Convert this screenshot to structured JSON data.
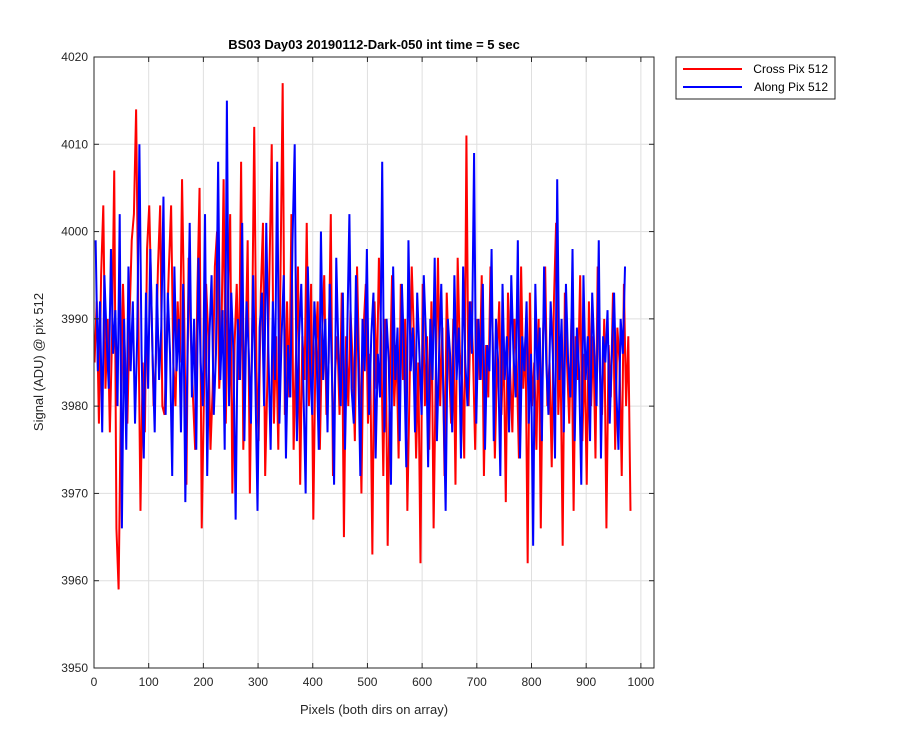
{
  "chart_data": {
    "type": "line",
    "title": "BS03 Day03 20190112-Dark-050 int time = 5 sec",
    "xlabel": "Pixels (both dirs on array)",
    "ylabel": "Signal (ADU) @ pix 512",
    "xlim": [
      0,
      1024
    ],
    "ylim": [
      3950,
      4020
    ],
    "xticks": [
      0,
      100,
      200,
      300,
      400,
      500,
      600,
      700,
      800,
      900,
      1000
    ],
    "yticks": [
      3950,
      3960,
      3970,
      3980,
      3990,
      4000,
      4010,
      4020
    ],
    "grid": true,
    "legend_position": "outside top-right",
    "series": [
      {
        "name": "Cross Pix 512",
        "color": "#ff0000",
        "x_start": 1,
        "x_step": 4,
        "values": [
          3985,
          3992,
          3978,
          3995,
          4003,
          3982,
          3990,
          3977,
          3988,
          4007,
          3966,
          3959,
          3980,
          3994,
          3985,
          3978,
          3990,
          3999,
          4002,
          4014,
          3991,
          3968,
          3985,
          3977,
          3998,
          4003,
          3992,
          3980,
          3985,
          3996,
          4003,
          3980,
          3979,
          3988,
          3996,
          4003,
          3985,
          3980,
          3992,
          3985,
          4006,
          3990,
          3971,
          3997,
          3988,
          3981,
          3975,
          3993,
          4005,
          3966,
          3981,
          3994,
          3988,
          3975,
          3982,
          3996,
          4000,
          3982,
          3988,
          4006,
          3978,
          3993,
          4002,
          3970,
          3987,
          3994,
          3983,
          4008,
          3975,
          3986,
          3999,
          3970,
          3988,
          4012,
          3984,
          3976,
          3993,
          4001,
          3972,
          3983,
          3996,
          4010,
          3978,
          3988,
          3975,
          3995,
          4017,
          3979,
          3992,
          3981,
          4002,
          3975,
          3985,
          3996,
          3971,
          3988,
          3983,
          4001,
          3980,
          3994,
          3967,
          3986,
          3992,
          3975,
          3988,
          3995,
          3979,
          3985,
          4002,
          3972,
          3984,
          3988,
          3979,
          3993,
          3965,
          3988,
          3980,
          3991,
          3985,
          3976,
          3996,
          3984,
          3970,
          3989,
          3994,
          3978,
          3986,
          3963,
          3992,
          3982,
          3997,
          3988,
          3972,
          3990,
          3964,
          3983,
          3995,
          3980,
          3987,
          3974,
          3994,
          3983,
          3990,
          3968,
          3982,
          3996,
          3988,
          3974,
          3985,
          3962,
          3994,
          3980,
          3988,
          3975,
          3992,
          3966,
          3984,
          3997,
          3980,
          3989,
          3972,
          3993,
          3985,
          3978,
          3990,
          3971,
          3997,
          3986,
          3983,
          3974,
          4011,
          3980,
          3992,
          3986,
          3975,
          3990,
          3983,
          3995,
          3972,
          3987,
          3981,
          3996,
          3988,
          3974,
          3985,
          3992,
          3979,
          3988,
          3969,
          3993,
          3984,
          3977,
          3990,
          3985,
          3974,
          3996,
          3982,
          3988,
          3962,
          3993,
          3980,
          3985,
          3975,
          3990,
          3966,
          3988,
          3996,
          3980,
          3985,
          3973,
          3992,
          4001,
          3979,
          3986,
          3964,
          3993,
          3985,
          3978,
          3990,
          3968,
          3988,
          3983,
          3995,
          3976,
          3986,
          3971,
          3992,
          3980,
          3988,
          3974,
          3996,
          3984,
          3979,
          3990,
          3966,
          3987,
          3981,
          3993,
          3975,
          3989,
          3985,
          3972,
          3994,
          3980,
          3988,
          3968
        ]
      },
      {
        "name": "Along Pix 512",
        "color": "#0000ff",
        "x_start": 3,
        "x_step": 4,
        "values": [
          3999,
          3984,
          3992,
          3977,
          3995,
          3988,
          3982,
          3998,
          3986,
          3991,
          3980,
          4002,
          3966,
          3990,
          3975,
          3996,
          3984,
          3992,
          3978,
          3988,
          4010,
          3986,
          3974,
          3993,
          3982,
          3998,
          3986,
          3977,
          3994,
          3983,
          3989,
          4004,
          3979,
          3993,
          3986,
          3972,
          3996,
          3984,
          3990,
          3977,
          3994,
          3969,
          3986,
          4001,
          3981,
          3990,
          3975,
          3997,
          3985,
          3980,
          4002,
          3972,
          3988,
          3995,
          3979,
          3986,
          4008,
          3983,
          3991,
          3975,
          4015,
          3980,
          3993,
          3986,
          3967,
          3990,
          3983,
          4001,
          3976,
          3992,
          3986,
          3978,
          3995,
          3983,
          3968,
          3989,
          3993,
          3980,
          4001,
          3986,
          3975,
          3992,
          3983,
          4008,
          3978,
          3988,
          3995,
          3974,
          3987,
          3981,
          3999,
          4010,
          3976,
          3988,
          3994,
          3982,
          3970,
          3996,
          3985,
          3979,
          3992,
          3986,
          3975,
          4000,
          3983,
          3990,
          3977,
          3994,
          3984,
          3971,
          3997,
          3986,
          3980,
          3993,
          3975,
          3988,
          4002,
          3982,
          3978,
          3995,
          3986,
          3972,
          3990,
          3984,
          3998,
          3979,
          3988,
          3993,
          3974,
          3986,
          3981,
          4008,
          3977,
          3990,
          3985,
          3971,
          3996,
          3983,
          3989,
          3976,
          3994,
          3986,
          3973,
          3999,
          3984,
          3989,
          3977,
          3993,
          3986,
          3979,
          3995,
          3988,
          3973,
          3990,
          3983,
          3997,
          3976,
          3986,
          3994,
          3981,
          3968,
          3990,
          3986,
          3977,
          3995,
          3983,
          3989,
          3974,
          3996,
          3985,
          3980,
          3992,
          3986,
          4009,
          3978,
          3990,
          3983,
          3994,
          3975,
          3987,
          3984,
          3998,
          3976,
          3990,
          3985,
          3972,
          3994,
          3983,
          3988,
          3977,
          3995,
          3986,
          3981,
          3999,
          3974,
          3988,
          3984,
          3992,
          3978,
          3986,
          3964,
          3994,
          3983,
          3989,
          3976,
          3996,
          3985,
          3979,
          3992,
          3986,
          3974,
          4006,
          3983,
          3990,
          3977,
          3994,
          3985,
          3981,
          3998,
          3976,
          3989,
          3984,
          3971,
          3995,
          3983,
          3988,
          3976,
          3993,
          3986,
          3980,
          3999,
          3974,
          3988,
          3985,
          3991,
          3978,
          3986,
          3993,
          3982,
          3975,
          3990,
          3986,
          3996
        ]
      }
    ]
  }
}
